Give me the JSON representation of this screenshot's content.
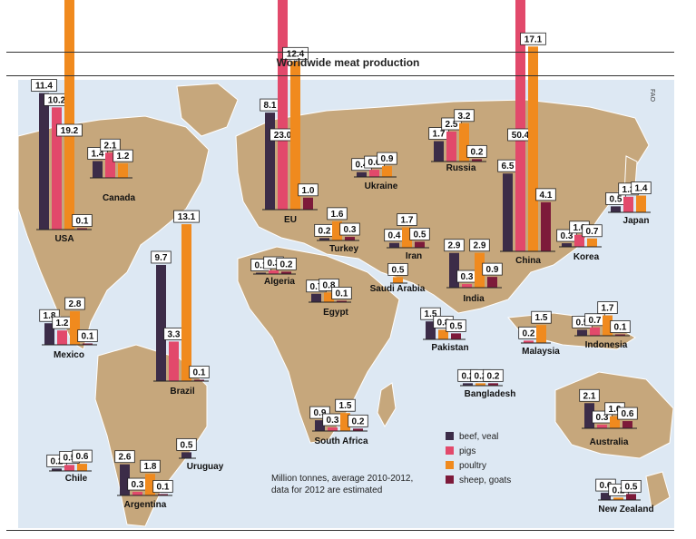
{
  "title": "Worldwide meat production",
  "source": "FAO",
  "note_lines": [
    "Million tonnes, average 2010-2012,",
    "data for 2012 are estimated"
  ],
  "colors": {
    "beef, veal": "#3c2c48",
    "pigs": "#e2496b",
    "poultry": "#f08a1e",
    "sheep, goats": "#7d1a3a",
    "land": "#c6a77c",
    "ocean": "#dde8f3",
    "label_box": "#ffffff"
  },
  "chart_data": {
    "type": "bar",
    "unit": "Million tonnes",
    "series_names": [
      "beef, veal",
      "pigs",
      "poultry",
      "sheep, goats"
    ],
    "countries": [
      {
        "name": "USA",
        "values": [
          11.4,
          10.2,
          19.2,
          0.1
        ]
      },
      {
        "name": "Canada",
        "values": [
          1.4,
          2.1,
          1.2,
          null
        ]
      },
      {
        "name": "Mexico",
        "values": [
          1.8,
          1.2,
          2.8,
          0.1
        ]
      },
      {
        "name": "Brazil",
        "values": [
          9.7,
          3.3,
          13.1,
          0.1
        ]
      },
      {
        "name": "Uruguay",
        "values": [
          0.5,
          null,
          null,
          null
        ]
      },
      {
        "name": "Chile",
        "values": [
          0.2,
          0.5,
          0.6,
          null
        ]
      },
      {
        "name": "Argentina",
        "values": [
          2.6,
          0.3,
          1.8,
          0.1
        ]
      },
      {
        "name": "EU",
        "values": [
          8.1,
          23.0,
          12.4,
          1.0
        ]
      },
      {
        "name": "Ukraine",
        "values": [
          0.4,
          0.6,
          0.9,
          null
        ]
      },
      {
        "name": "Russia",
        "values": [
          1.7,
          2.5,
          3.2,
          0.2
        ]
      },
      {
        "name": "Turkey",
        "values": [
          0.2,
          null,
          1.6,
          0.3
        ]
      },
      {
        "name": "Algeria",
        "values": [
          0.1,
          0.3,
          null,
          0.2
        ]
      },
      {
        "name": "Egypt",
        "values": [
          0.7,
          null,
          0.8,
          0.1
        ]
      },
      {
        "name": "Iran",
        "values": [
          0.4,
          null,
          1.7,
          0.5
        ]
      },
      {
        "name": "Saudi Arabia",
        "values": [
          null,
          null,
          0.5,
          null
        ]
      },
      {
        "name": "India",
        "values": [
          2.9,
          0.3,
          2.9,
          0.9
        ]
      },
      {
        "name": "Pakistan",
        "values": [
          1.5,
          null,
          0.8,
          0.5
        ]
      },
      {
        "name": "Bangladesh",
        "values": [
          0.2,
          null,
          0.2,
          0.2
        ]
      },
      {
        "name": "China",
        "values": [
          6.5,
          50.4,
          17.1,
          4.1
        ]
      },
      {
        "name": "Korea",
        "values": [
          0.3,
          1.0,
          0.7,
          null
        ]
      },
      {
        "name": "Japan",
        "values": [
          0.5,
          1.3,
          1.4,
          null
        ]
      },
      {
        "name": "Malaysia",
        "values": [
          null,
          0.2,
          1.5,
          null
        ]
      },
      {
        "name": "Indonesia",
        "values": [
          0.5,
          0.7,
          1.7,
          0.1
        ]
      },
      {
        "name": "South Africa",
        "values": [
          0.9,
          0.3,
          1.5,
          0.2
        ]
      },
      {
        "name": "Australia",
        "values": [
          2.1,
          0.3,
          1.0,
          0.6
        ]
      },
      {
        "name": "New Zealand",
        "values": [
          0.6,
          null,
          0.2,
          0.5
        ]
      }
    ]
  }
}
